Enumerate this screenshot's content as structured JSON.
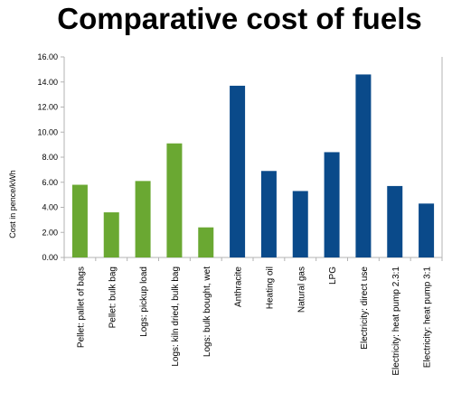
{
  "chart_data": {
    "type": "bar",
    "title": "Comparative cost of fuels",
    "xlabel": "",
    "ylabel": "Cost in pence/kWh",
    "ylim": [
      0,
      16
    ],
    "yticks": [
      "0.00",
      "2.00",
      "4.00",
      "6.00",
      "8.00",
      "10.00",
      "12.00",
      "14.00",
      "16.00"
    ],
    "grid": false,
    "legend": "none",
    "categories": [
      "Pellet: pallet of bags",
      "Pellet: bulk bag",
      "Logs: pickup load",
      "Logs: kiln dried, bulk bag",
      "Logs: bulk bought, wet",
      "Anthracite",
      "Heating oil",
      "Natural gas",
      "LPG",
      "Electricity: direct use",
      "Electricity: heat pump 2.3:1",
      "Electricity: heat pump 3:1"
    ],
    "values": [
      5.8,
      3.6,
      6.1,
      9.1,
      2.4,
      13.7,
      6.9,
      5.3,
      8.4,
      14.6,
      5.7,
      4.3
    ],
    "colors": [
      "#6aa832",
      "#6aa832",
      "#6aa832",
      "#6aa832",
      "#6aa832",
      "#0a4a8a",
      "#0a4a8a",
      "#0a4a8a",
      "#0a4a8a",
      "#0a4a8a",
      "#0a4a8a",
      "#0a4a8a"
    ],
    "axis_color": "#b3b3b3"
  }
}
